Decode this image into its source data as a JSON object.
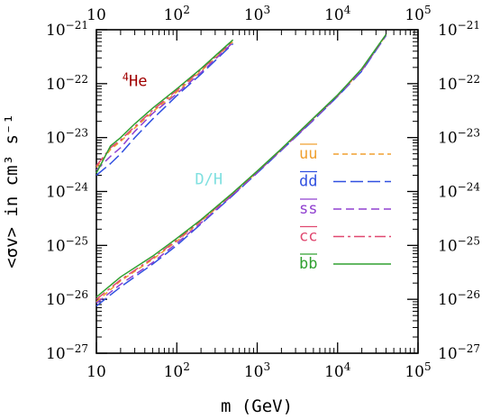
{
  "chart_data": {
    "type": "line",
    "xlabel": "m (GeV)",
    "ylabel": "<σv> in cm³ s⁻¹",
    "x_scale": "log",
    "y_scale": "log",
    "xlim": [
      10,
      100000
    ],
    "ylim": [
      1e-27,
      1e-21
    ],
    "x_ticks": [
      {
        "value": 10,
        "base": "10",
        "exp": ""
      },
      {
        "value": 100,
        "base": "10",
        "exp": "2"
      },
      {
        "value": 1000,
        "base": "10",
        "exp": "3"
      },
      {
        "value": 10000,
        "base": "10",
        "exp": "4"
      },
      {
        "value": 100000,
        "base": "10",
        "exp": "5"
      }
    ],
    "y_ticks": [
      {
        "value": 1e-21,
        "base": "10",
        "exp": "−21"
      },
      {
        "value": 1e-22,
        "base": "10",
        "exp": "−22"
      },
      {
        "value": 1e-23,
        "base": "10",
        "exp": "−23"
      },
      {
        "value": 1e-24,
        "base": "10",
        "exp": "−24"
      },
      {
        "value": 1e-25,
        "base": "10",
        "exp": "−25"
      },
      {
        "value": 1e-26,
        "base": "10",
        "exp": "−26"
      },
      {
        "value": 1e-27,
        "base": "10",
        "exp": "−27"
      }
    ],
    "annotations": [
      {
        "text_sup": "4",
        "text": "He",
        "x": 30,
        "y": 9e-23,
        "color": "#a00000"
      },
      {
        "text_sup": "",
        "text": "D/H",
        "x": 250,
        "y": 1.35e-24,
        "color": "#7fe0e0"
      }
    ],
    "series": [
      {
        "name": "uu",
        "group": "He",
        "color": "#f0a030",
        "dash": "6,4",
        "x": [
          10,
          15,
          20,
          30,
          50,
          100,
          200,
          500
        ],
        "y": [
          2.8e-24,
          6e-24,
          8.5e-24,
          1.5e-23,
          3e-23,
          7e-23,
          1.7e-22,
          6e-22
        ]
      },
      {
        "name": "dd",
        "group": "He",
        "color": "#3050e0",
        "dash": "14,5",
        "x": [
          10,
          15,
          20,
          30,
          50,
          100,
          200,
          500
        ],
        "y": [
          2e-24,
          3.3e-24,
          5e-24,
          1e-23,
          2.2e-23,
          6e-23,
          1.5e-22,
          5.5e-22
        ]
      },
      {
        "name": "ss",
        "group": "He",
        "color": "#9040d0",
        "dash": "9,5",
        "x": [
          10,
          15,
          20,
          30,
          50,
          100,
          200,
          500
        ],
        "y": [
          2.5e-24,
          4.5e-24,
          6.5e-24,
          1.3e-23,
          2.8e-23,
          6.5e-23,
          1.6e-22,
          5.8e-22
        ]
      },
      {
        "name": "cc",
        "group": "He",
        "color": "#e04870",
        "dash": "12,4,3,4",
        "x": [
          10,
          15,
          20,
          30,
          50,
          100,
          200,
          500
        ],
        "y": [
          3e-24,
          6.5e-24,
          9e-24,
          1.6e-23,
          3.2e-23,
          7.5e-23,
          1.8e-22,
          6.2e-22
        ]
      },
      {
        "name": "bb",
        "group": "He",
        "color": "#30a030",
        "dash": "",
        "x": [
          10,
          15,
          20,
          30,
          50,
          100,
          200,
          500
        ],
        "y": [
          2.2e-24,
          7e-24,
          1e-23,
          1.8e-23,
          3.5e-23,
          8e-23,
          1.9e-22,
          6.5e-22
        ]
      },
      {
        "name": "uu",
        "group": "D/H",
        "color": "#f0a030",
        "dash": "6,4",
        "x": [
          10,
          20,
          50,
          100,
          200,
          500,
          1000,
          2000,
          5000,
          10000,
          20000,
          40000
        ],
        "y": [
          9e-27,
          2.2e-26,
          5.5e-26,
          1.2e-25,
          2.8e-25,
          9e-25,
          2.3e-24,
          6e-24,
          2.2e-23,
          6e-23,
          1.8e-22,
          8e-22
        ]
      },
      {
        "name": "dd",
        "group": "D/H",
        "color": "#3050e0",
        "dash": "14,5",
        "x": [
          10,
          20,
          50,
          100,
          200,
          500,
          1000,
          2000,
          5000,
          10000,
          20000,
          40000
        ],
        "y": [
          7.5e-27,
          1.7e-26,
          4.5e-26,
          1e-25,
          2.5e-25,
          8.5e-25,
          2.2e-24,
          5.8e-24,
          2.1e-23,
          5.8e-23,
          1.7e-22,
          7.8e-22
        ]
      },
      {
        "name": "ss",
        "group": "D/H",
        "color": "#9040d0",
        "dash": "9,5",
        "x": [
          10,
          20,
          50,
          100,
          200,
          500,
          1000,
          2000,
          5000,
          10000,
          20000,
          40000
        ],
        "y": [
          8.5e-27,
          1.9e-26,
          4.8e-26,
          1.1e-25,
          2.6e-25,
          8.7e-25,
          2.25e-24,
          5.9e-24,
          2.15e-23,
          5.9e-23,
          1.75e-22,
          7.9e-22
        ]
      },
      {
        "name": "cc",
        "group": "D/H",
        "color": "#e04870",
        "dash": "12,4,3,4",
        "x": [
          10,
          20,
          50,
          100,
          200,
          500,
          1000,
          2000,
          5000,
          10000,
          20000,
          40000
        ],
        "y": [
          1e-26,
          2.3e-26,
          5.8e-26,
          1.25e-25,
          2.9e-25,
          9.2e-25,
          2.35e-24,
          6.1e-24,
          2.25e-23,
          6.1e-23,
          1.85e-22,
          8.1e-22
        ]
      },
      {
        "name": "bb",
        "group": "D/H",
        "color": "#30a030",
        "dash": "",
        "x": [
          10,
          20,
          50,
          100,
          200,
          500,
          1000,
          2000,
          5000,
          10000,
          20000,
          40000
        ],
        "y": [
          1.1e-26,
          2.6e-26,
          6.3e-26,
          1.35e-25,
          3e-25,
          9.5e-25,
          2.4e-24,
          6.2e-24,
          2.3e-23,
          6.2e-23,
          1.9e-22,
          8.2e-22
        ]
      }
    ],
    "legend": {
      "placement": "right-inside",
      "entries": [
        {
          "label": "uu",
          "color": "#f0a030",
          "dash": "6,4"
        },
        {
          "label": "dd",
          "color": "#3050e0",
          "dash": "14,5"
        },
        {
          "label": "ss",
          "color": "#9040d0",
          "dash": "9,5"
        },
        {
          "label": "cc",
          "color": "#e04870",
          "dash": "12,4,3,4"
        },
        {
          "label": "bb",
          "color": "#30a030",
          "dash": ""
        }
      ]
    }
  }
}
